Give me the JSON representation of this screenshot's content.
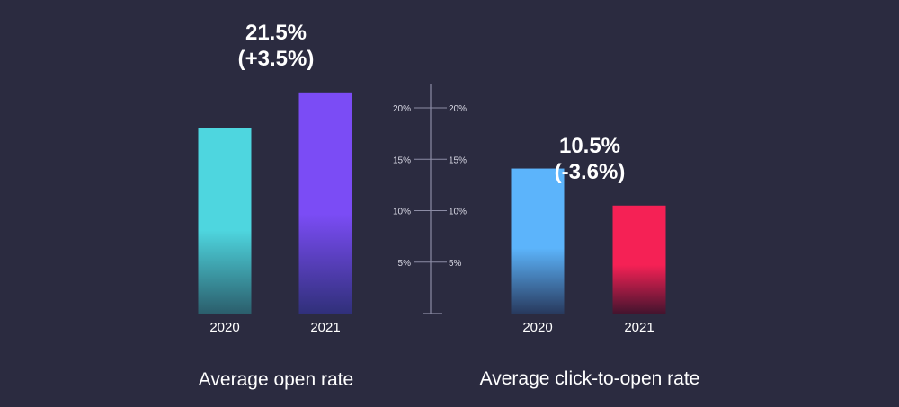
{
  "chart_data": [
    {
      "type": "bar",
      "title": "Average open rate",
      "categories": [
        "2020",
        "2021"
      ],
      "values": [
        18.0,
        21.5
      ],
      "colors_top": [
        "#4ed6df",
        "#7b4cf5"
      ],
      "colors_bottom": [
        "#2b5e6c",
        "#30307a"
      ],
      "annotation": {
        "value_text": "21.5%",
        "change_text": "(+3.5%)",
        "target_index": 1
      },
      "ylim": [
        0,
        22.5
      ]
    },
    {
      "type": "bar",
      "title": "Average click-to-open rate",
      "categories": [
        "2020",
        "2021"
      ],
      "values": [
        14.1,
        10.5
      ],
      "colors_top": [
        "#5cb4fb",
        "#f52155"
      ],
      "colors_bottom": [
        "#283a5e",
        "#44142e"
      ],
      "annotation": {
        "value_text": "10.5%",
        "change_text": "(-3.6%)",
        "target_index": 1
      },
      "ylim": [
        0,
        22.5
      ]
    }
  ],
  "axis": {
    "ticks": [
      5,
      10,
      15,
      20
    ],
    "tick_labels": [
      "5%",
      "10%",
      "15%",
      "20%"
    ],
    "color": "#8c8ca5",
    "label_color": "#d8d8e4"
  },
  "background": "#2b2b40",
  "text_color": "#ffffff"
}
